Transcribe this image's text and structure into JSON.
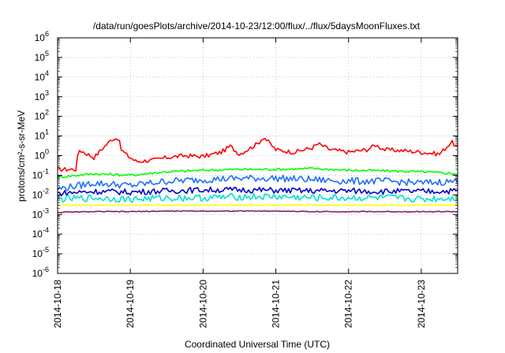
{
  "chart_data": {
    "type": "line",
    "title": "/data/run/goesPlots/archive/2014-10-23/12:00/flux/../flux/5daysMoonFluxes.txt",
    "xlabel": "Coordinated Universal Time (UTC)",
    "ylabel": "protons/cm²-s-sr-MeV",
    "ylog": true,
    "ylim": [
      1e-06,
      1000000.0
    ],
    "xlim": [
      "2014-10-18T00:00",
      "2014-10-23T12:00"
    ],
    "grid": true,
    "legend": "none",
    "x_ticks": [
      "2014-10-18",
      "2014-10-19",
      "2014-10-20",
      "2014-10-21",
      "2014-10-22",
      "2014-10-23"
    ],
    "y_ticks": [
      {
        "value": 1e-06,
        "base": "10",
        "exp": "-6"
      },
      {
        "value": 1e-05,
        "base": "10",
        "exp": "-5"
      },
      {
        "value": 0.0001,
        "base": "10",
        "exp": "-4"
      },
      {
        "value": 0.001,
        "base": "10",
        "exp": "-3"
      },
      {
        "value": 0.01,
        "base": "10",
        "exp": "-2"
      },
      {
        "value": 0.1,
        "base": "10",
        "exp": "-1"
      },
      {
        "value": 1,
        "base": "10",
        "exp": "0"
      },
      {
        "value": 10.0,
        "base": "10",
        "exp": "1"
      },
      {
        "value": 100.0,
        "base": "10",
        "exp": "2"
      },
      {
        "value": 1000.0,
        "base": "10",
        "exp": "3"
      },
      {
        "value": 10000.0,
        "base": "10",
        "exp": "4"
      },
      {
        "value": 100000.0,
        "base": "10",
        "exp": "5"
      },
      {
        "value": 1000000.0,
        "base": "10",
        "exp": "6"
      }
    ],
    "series": [
      {
        "color": "#ff0000",
        "x": [
          "2014-10-18T00:00",
          "2014-10-18T06:00",
          "2014-10-18T07:00",
          "2014-10-18T12:00",
          "2014-10-18T15:00",
          "2014-10-18T18:00",
          "2014-10-18T20:00",
          "2014-10-18T21:00",
          "2014-10-18T23:00",
          "2014-10-19T02:00",
          "2014-10-19T08:00",
          "2014-10-19T12:00",
          "2014-10-19T18:00",
          "2014-10-20T00:00",
          "2014-10-20T06:00",
          "2014-10-20T09:00",
          "2014-10-20T12:00",
          "2014-10-20T18:00",
          "2014-10-20T20:00",
          "2014-10-21T00:00",
          "2014-10-21T06:00",
          "2014-10-21T12:00",
          "2014-10-21T14:00",
          "2014-10-21T18:00",
          "2014-10-22T00:00",
          "2014-10-22T06:00",
          "2014-10-22T09:00",
          "2014-10-22T12:00",
          "2014-10-22T18:00",
          "2014-10-23T00:00",
          "2014-10-23T06:00",
          "2014-10-23T10:00",
          "2014-10-23T12:00"
        ],
        "y": [
          0.2,
          0.2,
          2.0,
          0.8,
          2.5,
          7.0,
          8.0,
          2.0,
          1.0,
          0.5,
          0.6,
          0.8,
          1.0,
          0.9,
          1.5,
          3.0,
          1.2,
          4.0,
          9.0,
          2.0,
          1.5,
          2.5,
          4.0,
          2.0,
          1.5,
          2.0,
          3.5,
          2.0,
          1.8,
          1.5,
          1.2,
          5.0,
          2.5
        ]
      },
      {
        "color": "#00ff00",
        "x": [
          "2014-10-18T00:00",
          "2014-10-18T12:00",
          "2014-10-19T00:00",
          "2014-10-19T12:00",
          "2014-10-20T00:00",
          "2014-10-20T12:00",
          "2014-10-21T00:00",
          "2014-10-21T12:00",
          "2014-10-22T00:00",
          "2014-10-22T12:00",
          "2014-10-23T00:00",
          "2014-10-23T12:00"
        ],
        "y": [
          0.08,
          0.12,
          0.1,
          0.15,
          0.18,
          0.2,
          0.2,
          0.22,
          0.18,
          0.17,
          0.15,
          0.12
        ]
      },
      {
        "color": "#1e6fff",
        "x": [
          "2014-10-18T00:00",
          "2014-10-18T12:00",
          "2014-10-19T00:00",
          "2014-10-19T12:00",
          "2014-10-20T00:00",
          "2014-10-20T12:00",
          "2014-10-21T00:00",
          "2014-10-21T12:00",
          "2014-10-22T00:00",
          "2014-10-22T12:00",
          "2014-10-23T00:00",
          "2014-10-23T12:00"
        ],
        "y": [
          0.02,
          0.04,
          0.03,
          0.05,
          0.06,
          0.07,
          0.07,
          0.06,
          0.05,
          0.05,
          0.04,
          0.05
        ]
      },
      {
        "color": "#0000cc",
        "x": [
          "2014-10-18T00:00",
          "2014-10-18T12:00",
          "2014-10-19T00:00",
          "2014-10-19T12:00",
          "2014-10-20T00:00",
          "2014-10-20T12:00",
          "2014-10-21T00:00",
          "2014-10-21T12:00",
          "2014-10-22T00:00",
          "2014-10-22T12:00",
          "2014-10-23T00:00",
          "2014-10-23T12:00"
        ],
        "y": [
          0.012,
          0.015,
          0.014,
          0.016,
          0.018,
          0.018,
          0.017,
          0.016,
          0.016,
          0.015,
          0.015,
          0.016
        ]
      },
      {
        "color": "#00e0d0",
        "x": [
          "2014-10-18T00:00",
          "2014-10-18T12:00",
          "2014-10-19T00:00",
          "2014-10-19T12:00",
          "2014-10-20T00:00",
          "2014-10-20T12:00",
          "2014-10-21T00:00",
          "2014-10-21T12:00",
          "2014-10-22T00:00",
          "2014-10-22T12:00",
          "2014-10-23T00:00",
          "2014-10-23T12:00"
        ],
        "y": [
          0.006,
          0.007,
          0.006,
          0.007,
          0.007,
          0.008,
          0.008,
          0.007,
          0.007,
          0.007,
          0.006,
          0.007
        ]
      },
      {
        "color": "#ffff00",
        "x": [
          "2014-10-18T00:00",
          "2014-10-18T12:00",
          "2014-10-19T00:00",
          "2014-10-19T12:00",
          "2014-10-20T00:00",
          "2014-10-20T12:00",
          "2014-10-21T00:00",
          "2014-10-21T12:00",
          "2014-10-22T00:00",
          "2014-10-22T12:00",
          "2014-10-23T00:00",
          "2014-10-23T12:00"
        ],
        "y": [
          0.003,
          0.003,
          0.003,
          0.003,
          0.003,
          0.003,
          0.003,
          0.003,
          0.003,
          0.003,
          0.003,
          0.003
        ]
      },
      {
        "color": "#8b1a6b",
        "x": [
          "2014-10-18T00:00",
          "2014-10-18T12:00",
          "2014-10-19T00:00",
          "2014-10-19T12:00",
          "2014-10-20T00:00",
          "2014-10-20T12:00",
          "2014-10-21T00:00",
          "2014-10-21T12:00",
          "2014-10-22T00:00",
          "2014-10-22T12:00",
          "2014-10-23T00:00",
          "2014-10-23T12:00"
        ],
        "y": [
          0.0013,
          0.0014,
          0.0014,
          0.0015,
          0.0015,
          0.0015,
          0.0015,
          0.0014,
          0.0014,
          0.0014,
          0.0014,
          0.0014
        ]
      }
    ]
  }
}
